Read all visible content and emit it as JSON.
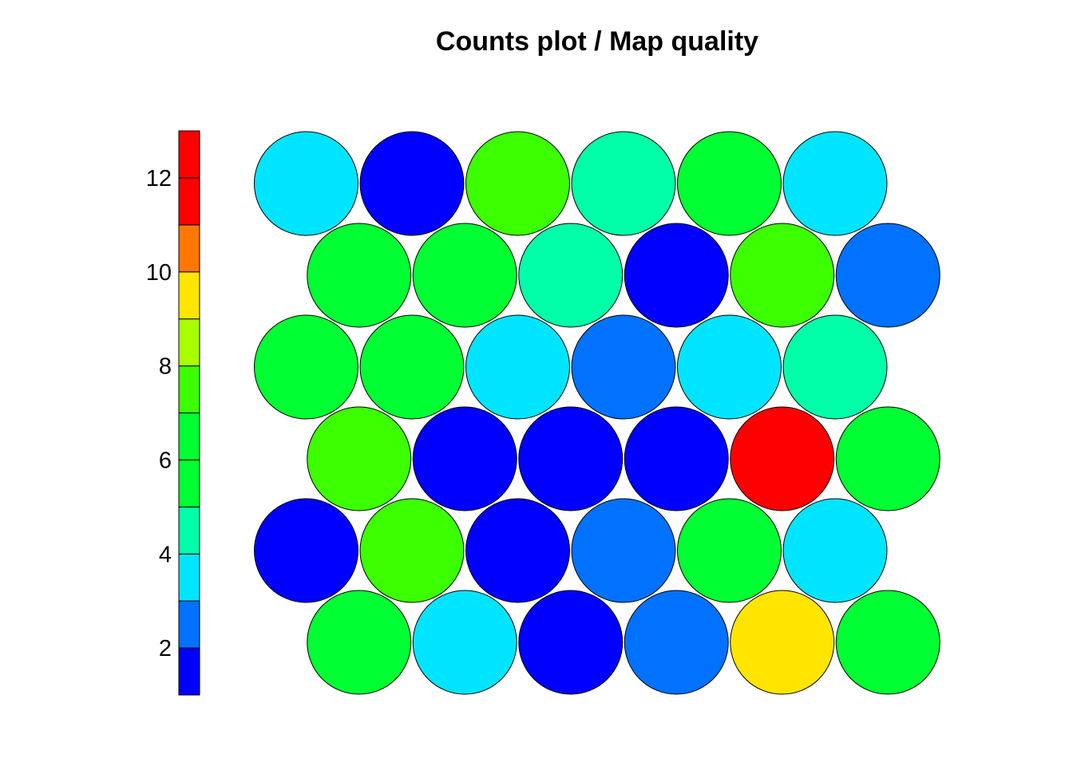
{
  "chart_data": {
    "type": "heatmap",
    "title": "Counts plot / Map quality",
    "grid": false,
    "legend": {
      "placement": "left",
      "ticks": [
        "2",
        "4",
        "6",
        "8",
        "10",
        "12"
      ],
      "tick_values": [
        2,
        4,
        6,
        8,
        10,
        12
      ],
      "range": [
        1,
        13
      ],
      "bins": [
        {
          "from": 1,
          "to": 2,
          "color": "#0000FF"
        },
        {
          "from": 2,
          "to": 3,
          "color": "#0072FF"
        },
        {
          "from": 3,
          "to": 4,
          "color": "#00E5FF"
        },
        {
          "from": 4,
          "to": 5,
          "color": "#00FFA8"
        },
        {
          "from": 5,
          "to": 6,
          "color": "#00FF33"
        },
        {
          "from": 6,
          "to": 7,
          "color": "#00FF33"
        },
        {
          "from": 7,
          "to": 8,
          "color": "#3CFF00"
        },
        {
          "from": 8,
          "to": 9,
          "color": "#A8FF00"
        },
        {
          "from": 9,
          "to": 10,
          "color": "#FFE500"
        },
        {
          "from": 10,
          "to": 11,
          "color": "#FF7700"
        },
        {
          "from": 11,
          "to": 12,
          "color": "#FF0000"
        },
        {
          "from": 12,
          "to": 13,
          "color": "#FF0000"
        }
      ]
    },
    "grid_shape": {
      "rows": 6,
      "cols": 6,
      "topology": "hexagonal"
    },
    "rows_top_to_bottom": [
      [
        3.5,
        1.5,
        7.5,
        4.5,
        6.5,
        3.5
      ],
      [
        6.5,
        6.5,
        4.5,
        1.5,
        7.5,
        2.5
      ],
      [
        6.5,
        6.5,
        3.5,
        2.5,
        3.5,
        4.5
      ],
      [
        7.5,
        1.5,
        1.5,
        1.5,
        12.5,
        6.5
      ],
      [
        1.5,
        7.5,
        1.5,
        2.5,
        6.5,
        3.5
      ],
      [
        6.5,
        3.5,
        1.5,
        2.5,
        9.5,
        6.5
      ]
    ]
  }
}
